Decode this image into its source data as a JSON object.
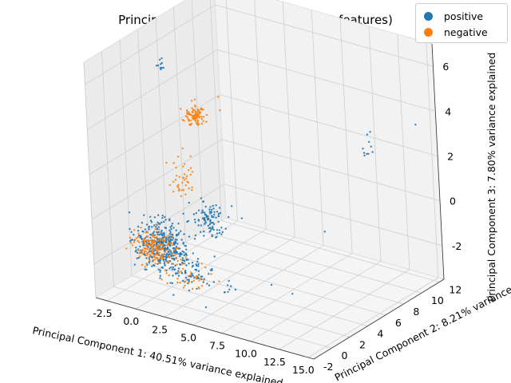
{
  "chart_data": {
    "type": "scatter",
    "title": "Principal Component Analysis (1000 features)",
    "xlabel": "Principal Component 1: 40.51% variance explained",
    "ylabel": "Principal Component 2: 8.21% variance explained",
    "zlabel": "Principal Component 3: 7.80% variance explained",
    "xlim": [
      -3.5,
      15.5
    ],
    "ylim": [
      -2,
      12.5
    ],
    "zlim": [
      -3.5,
      7
    ],
    "xticks": [
      "-2.5",
      "0.0",
      "2.5",
      "5.0",
      "7.5",
      "10.0",
      "12.5",
      "15.0"
    ],
    "yticks": [
      "-2",
      "0",
      "2",
      "4",
      "6",
      "8",
      "10",
      "12"
    ],
    "zticks": [
      "-2",
      "0",
      "2",
      "4",
      "6"
    ],
    "grid": true,
    "legend_position": "top-right",
    "series": [
      {
        "name": "positive",
        "color": "#1f77b4",
        "clusters": [
          {
            "center": [
              0.5,
              0.5,
              -1.2
            ],
            "spread": [
              1.6,
              1.0,
              0.7
            ],
            "count": 380
          },
          {
            "center": [
              4.0,
              1.5,
              0.2
            ],
            "spread": [
              1.2,
              0.8,
              0.5
            ],
            "count": 100
          },
          {
            "center": [
              3.0,
              0.5,
              -2.2
            ],
            "spread": [
              1.5,
              1.2,
              0.4
            ],
            "count": 60
          },
          {
            "center": [
              -1.5,
              4.0,
              5.8
            ],
            "spread": [
              0.2,
              0.2,
              0.2
            ],
            "count": 10
          },
          {
            "center": [
              13.0,
              8.0,
              3.0
            ],
            "spread": [
              0.3,
              0.4,
              0.3
            ],
            "count": 8
          },
          {
            "center": [
              5.0,
              2.0,
              -2.8
            ],
            "spread": [
              0.3,
              0.3,
              0.2
            ],
            "count": 8
          }
        ],
        "points": [
          [
            14.5,
            11.5,
            3.5
          ],
          [
            12.5,
            9.0,
            3.5
          ],
          [
            11.0,
            10.5,
            2.8
          ],
          [
            9.0,
            4.0,
            -3.0
          ],
          [
            8.0,
            3.0,
            -2.5
          ],
          [
            6.5,
            2.0,
            0.5
          ],
          [
            10.5,
            6.0,
            -0.5
          ]
        ]
      },
      {
        "name": "negative",
        "color": "#ff7f0e",
        "clusters": [
          {
            "center": [
              0.2,
              0.2,
              -1.3
            ],
            "spread": [
              1.2,
              0.9,
              0.5
            ],
            "count": 170
          },
          {
            "center": [
              1.2,
              4.0,
              3.8
            ],
            "spread": [
              0.6,
              0.5,
              0.35
            ],
            "count": 90
          },
          {
            "center": [
              1.0,
              2.5,
              1.5
            ],
            "spread": [
              0.6,
              0.6,
              0.8
            ],
            "count": 40
          },
          {
            "center": [
              3.0,
              0.5,
              -2.3
            ],
            "spread": [
              1.5,
              1.0,
              0.4
            ],
            "count": 40
          }
        ],
        "points": [
          [
            2.5,
            5.0,
            4.6
          ],
          [
            3.0,
            4.5,
            4.2
          ]
        ]
      }
    ]
  }
}
